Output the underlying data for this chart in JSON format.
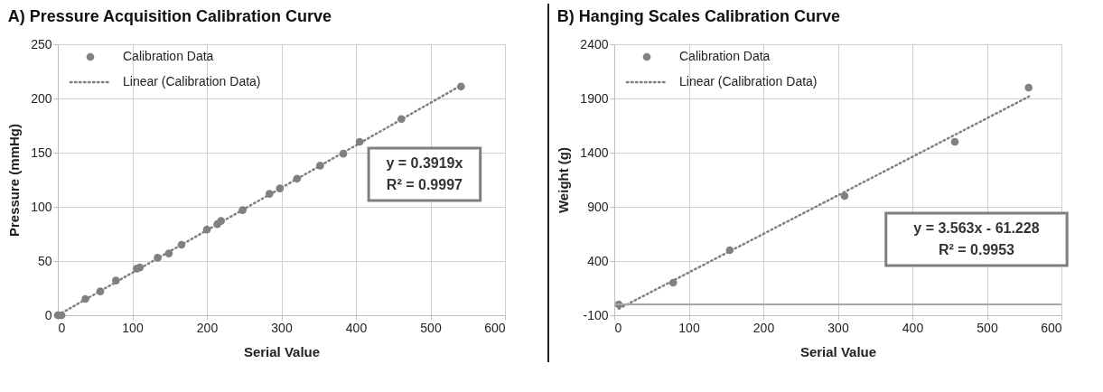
{
  "chart_data": [
    {
      "type": "scatter",
      "title": "A) Pressure Acquisition Calibration Curve",
      "xlabel": "Serial Value",
      "ylabel": "Pressure (mmHg)",
      "series": [
        {
          "name": "Calibration Data",
          "color": "#808080",
          "x": [
            0,
            5,
            37,
            57,
            78,
            106,
            110,
            134,
            149,
            166,
            200,
            214,
            219,
            248,
            284,
            298,
            321,
            352,
            383,
            405,
            461,
            541
          ],
          "values": [
            0,
            0,
            15,
            22,
            32,
            43,
            44,
            53,
            57,
            65,
            79,
            84,
            87,
            97,
            112,
            117,
            126,
            138,
            149,
            160,
            181,
            211
          ]
        },
        {
          "name": "Linear (Calibration Data)",
          "type": "line",
          "color": "#808080",
          "line_style": "dotted",
          "marker": "none",
          "x": [
            0,
            541
          ],
          "values": [
            0,
            212
          ]
        }
      ],
      "xlim": [
        0,
        600
      ],
      "xticks": [
        0,
        100,
        200,
        300,
        400,
        500,
        600
      ],
      "ylim": [
        0,
        250
      ],
      "yticks": [
        0,
        50,
        100,
        150,
        200,
        250
      ],
      "annotations": [
        "y = 0.3919x",
        "R² = 0.9997"
      ],
      "grid": true,
      "legend": "top left",
      "marker": "circle"
    },
    {
      "type": "scatter",
      "title": "B)  Hanging Scales Calibration Curve",
      "xlabel": "Serial Value",
      "ylabel": "Weight (g)",
      "series": [
        {
          "name": "Calibration Data",
          "color": "#808080",
          "x": [
            6,
            79,
            155,
            309,
            457,
            556
          ],
          "values": [
            0,
            200,
            500,
            1000,
            1500,
            2000
          ]
        },
        {
          "name": "Linear (Calibration Data)",
          "type": "line",
          "color": "#808080",
          "line_style": "dotted",
          "marker": "none",
          "x": [
            6,
            557
          ],
          "values": [
            -40,
            1920
          ]
        }
      ],
      "xlim": [
        0,
        600
      ],
      "xticks": [
        0,
        100,
        200,
        300,
        400,
        500,
        600
      ],
      "ylim": [
        -100,
        2400
      ],
      "yticks": [
        -100,
        400,
        900,
        1400,
        1900,
        2400
      ],
      "ref_lines": [
        {
          "axis": "y",
          "value": 0,
          "color": "#a6a6a6"
        }
      ],
      "annotations": [
        "y = 3.563x - 61.228",
        "R² = 0.9953"
      ],
      "grid": true,
      "legend": "top left",
      "marker": "circle"
    }
  ]
}
